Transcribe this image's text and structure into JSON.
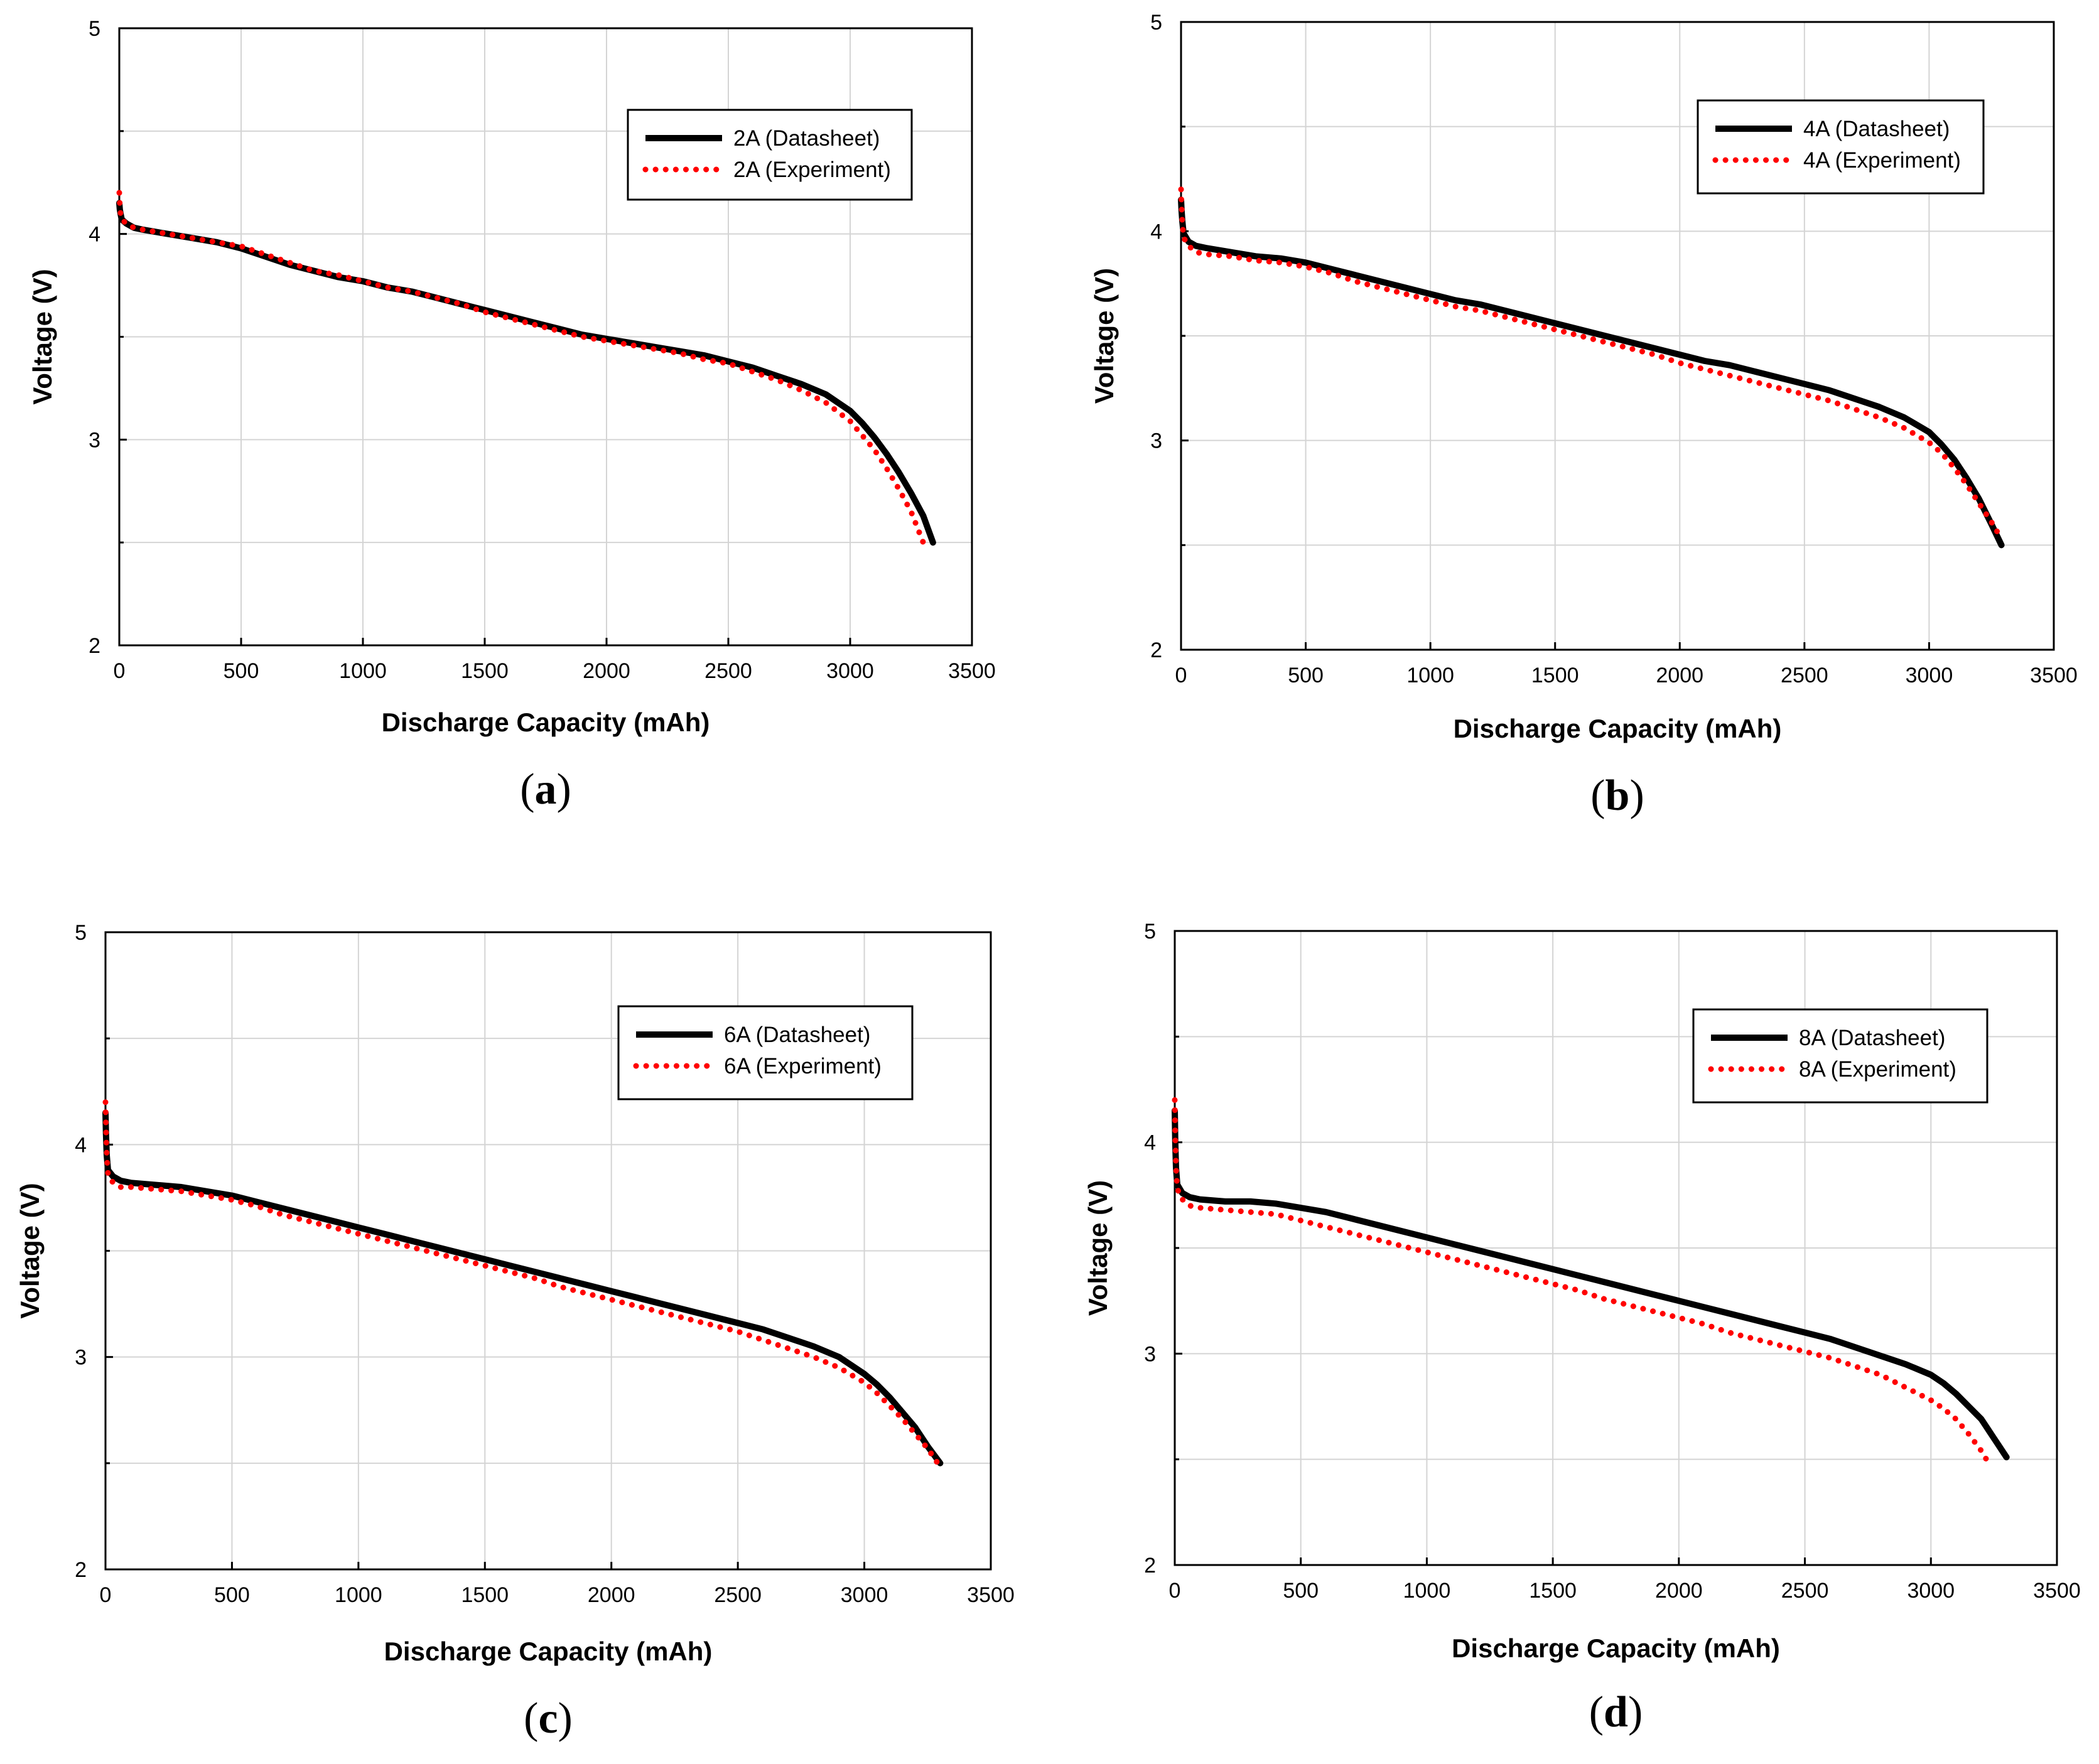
{
  "chart_data": [
    {
      "type": "line",
      "panel_label": "a",
      "xlabel": "Discharge Capacity (mAh)",
      "ylabel": "Voltage (V)",
      "xlim": [
        0,
        3500
      ],
      "ylim": [
        2,
        5
      ],
      "xticks": [
        0,
        500,
        1000,
        1500,
        2000,
        2500,
        3000,
        3500
      ],
      "yticks": [
        2,
        3,
        4,
        5
      ],
      "grid": true,
      "legend_position": "top-right",
      "series": [
        {
          "name": "2A (Datasheet)",
          "style": "solid",
          "color": "#000000",
          "x": [
            0,
            2,
            5,
            10,
            30,
            60,
            100,
            200,
            300,
            400,
            500,
            600,
            700,
            800,
            900,
            1000,
            1100,
            1200,
            1300,
            1400,
            1500,
            1600,
            1700,
            1800,
            1900,
            2000,
            2100,
            2200,
            2300,
            2400,
            2500,
            2600,
            2700,
            2800,
            2900,
            3000,
            3050,
            3100,
            3150,
            3200,
            3250,
            3300,
            3340
          ],
          "y": [
            4.15,
            4.12,
            4.1,
            4.07,
            4.05,
            4.03,
            4.02,
            4.0,
            3.98,
            3.96,
            3.93,
            3.89,
            3.85,
            3.82,
            3.79,
            3.77,
            3.74,
            3.72,
            3.69,
            3.66,
            3.63,
            3.6,
            3.57,
            3.54,
            3.51,
            3.49,
            3.47,
            3.45,
            3.43,
            3.41,
            3.38,
            3.35,
            3.31,
            3.27,
            3.22,
            3.14,
            3.08,
            3.01,
            2.93,
            2.84,
            2.74,
            2.63,
            2.5
          ]
        },
        {
          "name": "2A (Experiment)",
          "style": "dotted",
          "color": "#ff0000",
          "x": [
            0,
            2,
            5,
            10,
            30,
            60,
            100,
            200,
            300,
            400,
            500,
            600,
            700,
            800,
            900,
            1000,
            1100,
            1200,
            1300,
            1400,
            1500,
            1600,
            1700,
            1800,
            1900,
            2000,
            2100,
            2200,
            2300,
            2400,
            2500,
            2600,
            2700,
            2800,
            2900,
            3000,
            3050,
            3100,
            3150,
            3200,
            3250,
            3300
          ],
          "y": [
            4.2,
            4.14,
            4.1,
            4.07,
            4.05,
            4.03,
            4.02,
            4.0,
            3.98,
            3.96,
            3.94,
            3.9,
            3.86,
            3.82,
            3.8,
            3.77,
            3.74,
            3.72,
            3.69,
            3.66,
            3.62,
            3.59,
            3.56,
            3.53,
            3.5,
            3.48,
            3.46,
            3.44,
            3.42,
            3.39,
            3.37,
            3.33,
            3.29,
            3.24,
            3.18,
            3.09,
            3.02,
            2.95,
            2.86,
            2.76,
            2.65,
            2.5
          ]
        }
      ]
    },
    {
      "type": "line",
      "panel_label": "b",
      "xlabel": "Discharge Capacity (mAh)",
      "ylabel": "Voltage (V)",
      "xlim": [
        0,
        3500
      ],
      "ylim": [
        2,
        5
      ],
      "xticks": [
        0,
        500,
        1000,
        1500,
        2000,
        2500,
        3000,
        3500
      ],
      "yticks": [
        2,
        3,
        4,
        5
      ],
      "grid": true,
      "legend_position": "top-right",
      "series": [
        {
          "name": "4A (Datasheet)",
          "style": "solid",
          "color": "#000000",
          "x": [
            0,
            2,
            5,
            10,
            30,
            60,
            100,
            200,
            300,
            400,
            500,
            600,
            700,
            800,
            900,
            1000,
            1100,
            1200,
            1300,
            1400,
            1500,
            1600,
            1700,
            1800,
            1900,
            2000,
            2100,
            2200,
            2300,
            2400,
            2500,
            2600,
            2700,
            2800,
            2900,
            3000,
            3050,
            3100,
            3150,
            3200,
            3250,
            3290
          ],
          "y": [
            4.15,
            4.1,
            4.05,
            3.99,
            3.95,
            3.93,
            3.92,
            3.9,
            3.88,
            3.87,
            3.85,
            3.82,
            3.79,
            3.76,
            3.73,
            3.7,
            3.67,
            3.65,
            3.62,
            3.59,
            3.56,
            3.53,
            3.5,
            3.47,
            3.44,
            3.41,
            3.38,
            3.36,
            3.33,
            3.3,
            3.27,
            3.24,
            3.2,
            3.16,
            3.11,
            3.04,
            2.98,
            2.91,
            2.82,
            2.72,
            2.6,
            2.5
          ]
        },
        {
          "name": "4A (Experiment)",
          "style": "dotted",
          "color": "#ff0000",
          "x": [
            0,
            2,
            5,
            10,
            30,
            60,
            100,
            200,
            300,
            400,
            500,
            600,
            700,
            800,
            900,
            1000,
            1100,
            1200,
            1300,
            1400,
            1500,
            1600,
            1700,
            1800,
            1900,
            2000,
            2100,
            2200,
            2300,
            2400,
            2500,
            2600,
            2700,
            2800,
            2900,
            3000,
            3050,
            3100,
            3150,
            3200,
            3250,
            3290
          ],
          "y": [
            4.2,
            4.12,
            4.04,
            3.97,
            3.93,
            3.9,
            3.89,
            3.88,
            3.86,
            3.85,
            3.83,
            3.8,
            3.76,
            3.73,
            3.7,
            3.67,
            3.64,
            3.62,
            3.59,
            3.56,
            3.53,
            3.5,
            3.47,
            3.44,
            3.41,
            3.37,
            3.34,
            3.31,
            3.28,
            3.25,
            3.22,
            3.19,
            3.15,
            3.11,
            3.06,
            2.99,
            2.94,
            2.87,
            2.79,
            2.7,
            2.61,
            2.53
          ]
        }
      ]
    },
    {
      "type": "line",
      "panel_label": "c",
      "xlabel": "Discharge Capacity (mAh)",
      "ylabel": "Voltage (V)",
      "xlim": [
        0,
        3500
      ],
      "ylim": [
        2,
        5
      ],
      "xticks": [
        0,
        500,
        1000,
        1500,
        2000,
        2500,
        3000,
        3500
      ],
      "yticks": [
        2,
        3,
        4,
        5
      ],
      "grid": true,
      "legend_position": "top-right",
      "series": [
        {
          "name": "6A (Datasheet)",
          "style": "solid",
          "color": "#000000",
          "x": [
            0,
            2,
            5,
            10,
            30,
            60,
            100,
            200,
            300,
            400,
            500,
            600,
            700,
            800,
            900,
            1000,
            1100,
            1200,
            1300,
            1400,
            1500,
            1600,
            1700,
            1800,
            1900,
            2000,
            2100,
            2200,
            2300,
            2400,
            2500,
            2600,
            2700,
            2800,
            2900,
            3000,
            3050,
            3100,
            3150,
            3200,
            3250,
            3300
          ],
          "y": [
            4.15,
            4.05,
            3.95,
            3.88,
            3.85,
            3.83,
            3.82,
            3.81,
            3.8,
            3.78,
            3.76,
            3.73,
            3.7,
            3.67,
            3.64,
            3.61,
            3.58,
            3.55,
            3.52,
            3.49,
            3.46,
            3.43,
            3.4,
            3.37,
            3.34,
            3.31,
            3.28,
            3.25,
            3.22,
            3.19,
            3.16,
            3.13,
            3.09,
            3.05,
            3.0,
            2.92,
            2.87,
            2.81,
            2.74,
            2.67,
            2.58,
            2.5
          ]
        },
        {
          "name": "6A (Experiment)",
          "style": "dotted",
          "color": "#ff0000",
          "x": [
            0,
            2,
            5,
            10,
            30,
            60,
            100,
            200,
            300,
            400,
            500,
            600,
            700,
            800,
            900,
            1000,
            1100,
            1200,
            1300,
            1400,
            1500,
            1600,
            1700,
            1800,
            1900,
            2000,
            2100,
            2200,
            2300,
            2400,
            2500,
            2600,
            2700,
            2800,
            2900,
            3000,
            3050,
            3100,
            3150,
            3200,
            3250,
            3290
          ],
          "y": [
            4.2,
            4.08,
            3.95,
            3.86,
            3.82,
            3.8,
            3.8,
            3.79,
            3.78,
            3.76,
            3.74,
            3.71,
            3.67,
            3.64,
            3.61,
            3.58,
            3.55,
            3.52,
            3.49,
            3.46,
            3.43,
            3.4,
            3.37,
            3.33,
            3.3,
            3.27,
            3.24,
            3.21,
            3.18,
            3.15,
            3.12,
            3.08,
            3.04,
            3.0,
            2.95,
            2.88,
            2.83,
            2.77,
            2.71,
            2.64,
            2.57,
            2.5
          ]
        }
      ]
    },
    {
      "type": "line",
      "panel_label": "d",
      "xlabel": "Discharge Capacity (mAh)",
      "ylabel": "Voltage (V)",
      "xlim": [
        0,
        3500
      ],
      "ylim": [
        2,
        5
      ],
      "xticks": [
        0,
        500,
        1000,
        1500,
        2000,
        2500,
        3000,
        3500
      ],
      "yticks": [
        2,
        3,
        4,
        5
      ],
      "grid": true,
      "legend_position": "top-right",
      "series": [
        {
          "name": "8A (Datasheet)",
          "style": "solid",
          "color": "#000000",
          "x": [
            0,
            2,
            5,
            10,
            30,
            60,
            100,
            200,
            300,
            400,
            500,
            600,
            700,
            800,
            900,
            1000,
            1100,
            1200,
            1300,
            1400,
            1500,
            1600,
            1700,
            1800,
            1900,
            2000,
            2100,
            2200,
            2300,
            2400,
            2500,
            2600,
            2700,
            2800,
            2900,
            3000,
            3050,
            3100,
            3150,
            3200,
            3250,
            3300
          ],
          "y": [
            4.15,
            4.0,
            3.88,
            3.8,
            3.76,
            3.74,
            3.73,
            3.72,
            3.72,
            3.71,
            3.69,
            3.67,
            3.64,
            3.61,
            3.58,
            3.55,
            3.52,
            3.49,
            3.46,
            3.43,
            3.4,
            3.37,
            3.34,
            3.31,
            3.28,
            3.25,
            3.22,
            3.19,
            3.16,
            3.13,
            3.1,
            3.07,
            3.03,
            2.99,
            2.95,
            2.9,
            2.86,
            2.81,
            2.75,
            2.69,
            2.6,
            2.51
          ]
        },
        {
          "name": "8A (Experiment)",
          "style": "dotted",
          "color": "#ff0000",
          "x": [
            0,
            2,
            5,
            10,
            30,
            60,
            100,
            200,
            300,
            400,
            500,
            600,
            700,
            800,
            900,
            1000,
            1100,
            1200,
            1300,
            1400,
            1500,
            1600,
            1700,
            1800,
            1900,
            2000,
            2100,
            2200,
            2300,
            2400,
            2500,
            2600,
            2700,
            2800,
            2900,
            3000,
            3050,
            3100,
            3150,
            3200,
            3220
          ],
          "y": [
            4.2,
            4.02,
            3.88,
            3.78,
            3.73,
            3.7,
            3.69,
            3.68,
            3.67,
            3.66,
            3.63,
            3.6,
            3.57,
            3.54,
            3.51,
            3.48,
            3.45,
            3.42,
            3.39,
            3.36,
            3.33,
            3.3,
            3.26,
            3.23,
            3.2,
            3.17,
            3.14,
            3.1,
            3.07,
            3.04,
            3.01,
            2.98,
            2.94,
            2.9,
            2.84,
            2.78,
            2.74,
            2.69,
            2.62,
            2.54,
            2.5
          ]
        }
      ]
    }
  ]
}
